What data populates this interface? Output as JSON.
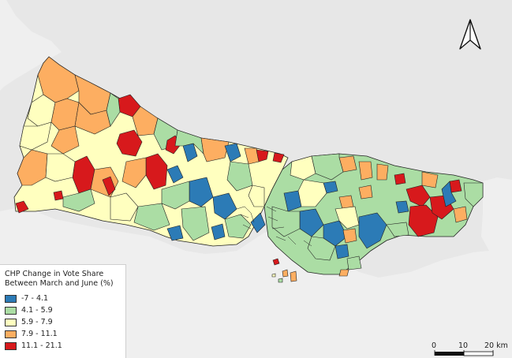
{
  "legend": {
    "title_line1": "CHP Change in Vote Share",
    "title_line2": "Between March and June (%)",
    "classes": [
      {
        "label": "-7 - 4.1",
        "color": "#2c7bb6"
      },
      {
        "label": "4.1 - 5.9",
        "color": "#abdda4"
      },
      {
        "label": "5.9 - 7.9",
        "color": "#ffffbf"
      },
      {
        "label": "7.9 - 11.1",
        "color": "#fdae61"
      },
      {
        "label": "11.1 - 21.1",
        "color": "#d7191c"
      }
    ]
  },
  "scalebar": {
    "tick0": "0",
    "tick1": "10",
    "tick2": "20 km"
  },
  "north_arrow": {
    "icon": "north-arrow-icon"
  },
  "colors": {
    "water": "#e7e7e7",
    "land_outside": "#efefef",
    "boundary": "#222222"
  }
}
